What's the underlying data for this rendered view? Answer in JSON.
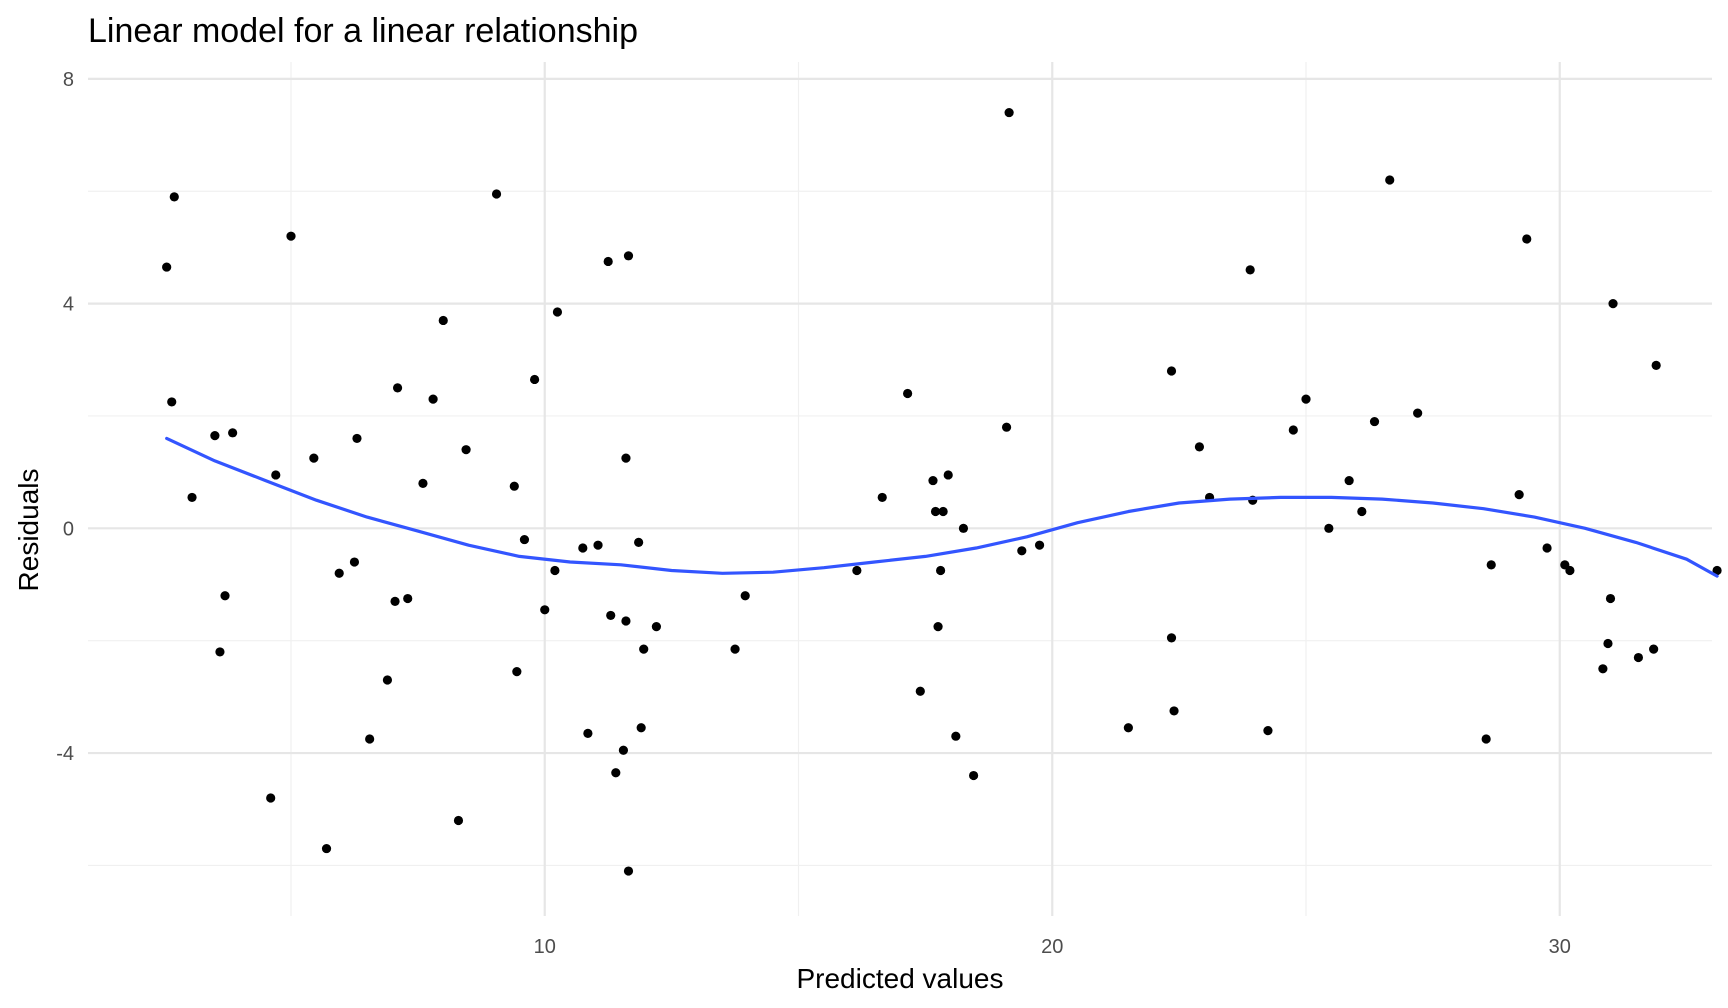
{
  "chart_data": {
    "type": "scatter",
    "title": "Linear model for a linear relationship",
    "xlabel": "Predicted values",
    "ylabel": "Residuals",
    "xlim": [
      1.0,
      33.0
    ],
    "ylim": [
      -6.9,
      8.3
    ],
    "x_ticks": [
      10,
      20,
      30
    ],
    "x_minor_ticks": [
      5,
      15,
      25
    ],
    "y_ticks": [
      -4,
      0,
      4,
      8
    ],
    "y_minor_ticks": [
      -6,
      -2,
      2,
      6
    ],
    "x_tick_labels": [
      "10",
      "20",
      "30"
    ],
    "y_tick_labels": [
      "-4",
      "0",
      "4",
      "8"
    ],
    "grid": true,
    "colors": {
      "points": "#000000",
      "smooth": "#3355ff",
      "grid": "#e6e6e6"
    },
    "points": [
      [
        2.55,
        4.65
      ],
      [
        2.65,
        2.25
      ],
      [
        2.7,
        5.9
      ],
      [
        3.05,
        0.55
      ],
      [
        3.5,
        1.65
      ],
      [
        3.6,
        -2.2
      ],
      [
        3.7,
        -1.2
      ],
      [
        3.85,
        1.7
      ],
      [
        4.6,
        -4.8
      ],
      [
        4.7,
        0.95
      ],
      [
        5.0,
        5.2
      ],
      [
        5.45,
        1.25
      ],
      [
        5.7,
        -5.7
      ],
      [
        5.95,
        -0.8
      ],
      [
        6.25,
        -0.6
      ],
      [
        6.3,
        1.6
      ],
      [
        6.55,
        -3.75
      ],
      [
        6.9,
        -2.7
      ],
      [
        7.05,
        -1.3
      ],
      [
        7.1,
        2.5
      ],
      [
        7.3,
        -1.25
      ],
      [
        7.6,
        0.8
      ],
      [
        7.8,
        2.3
      ],
      [
        8.0,
        3.7
      ],
      [
        8.3,
        -5.2
      ],
      [
        8.45,
        1.4
      ],
      [
        9.05,
        5.95
      ],
      [
        9.4,
        0.75
      ],
      [
        9.45,
        -2.55
      ],
      [
        9.6,
        -0.2
      ],
      [
        9.8,
        2.65
      ],
      [
        10.0,
        -1.45
      ],
      [
        10.2,
        -0.75
      ],
      [
        10.25,
        3.85
      ],
      [
        10.75,
        -0.35
      ],
      [
        10.85,
        -3.65
      ],
      [
        11.05,
        -0.3
      ],
      [
        11.25,
        4.75
      ],
      [
        11.3,
        -1.55
      ],
      [
        11.4,
        -4.35
      ],
      [
        11.55,
        -3.95
      ],
      [
        11.6,
        -1.65
      ],
      [
        11.6,
        1.25
      ],
      [
        11.65,
        -6.1
      ],
      [
        11.65,
        4.85
      ],
      [
        11.85,
        -0.25
      ],
      [
        11.9,
        -3.55
      ],
      [
        11.95,
        -2.15
      ],
      [
        12.2,
        -1.75
      ],
      [
        13.75,
        -2.15
      ],
      [
        13.95,
        -1.2
      ],
      [
        16.15,
        -0.75
      ],
      [
        16.65,
        0.55
      ],
      [
        17.15,
        2.4
      ],
      [
        17.4,
        -2.9
      ],
      [
        17.65,
        0.85
      ],
      [
        17.7,
        0.3
      ],
      [
        17.75,
        -1.75
      ],
      [
        17.8,
        -0.75
      ],
      [
        17.85,
        0.3
      ],
      [
        17.95,
        0.95
      ],
      [
        18.1,
        -3.7
      ],
      [
        18.25,
        0.0
      ],
      [
        18.45,
        -4.4
      ],
      [
        19.1,
        1.8
      ],
      [
        19.15,
        7.4
      ],
      [
        19.4,
        -0.4
      ],
      [
        19.75,
        -0.3
      ],
      [
        21.5,
        -3.55
      ],
      [
        22.35,
        2.8
      ],
      [
        22.35,
        -1.95
      ],
      [
        22.4,
        -3.25
      ],
      [
        22.9,
        1.45
      ],
      [
        23.1,
        0.55
      ],
      [
        23.9,
        4.6
      ],
      [
        23.95,
        0.5
      ],
      [
        24.25,
        -3.6
      ],
      [
        24.75,
        1.75
      ],
      [
        25.0,
        2.3
      ],
      [
        25.45,
        0.0
      ],
      [
        25.85,
        0.85
      ],
      [
        26.1,
        0.3
      ],
      [
        26.35,
        1.9
      ],
      [
        26.65,
        6.2
      ],
      [
        27.2,
        2.05
      ],
      [
        28.55,
        -3.75
      ],
      [
        28.65,
        -0.65
      ],
      [
        29.2,
        0.6
      ],
      [
        29.35,
        5.15
      ],
      [
        29.75,
        -0.35
      ],
      [
        30.1,
        -0.65
      ],
      [
        30.2,
        -0.75
      ],
      [
        30.85,
        -2.5
      ],
      [
        30.95,
        -2.05
      ],
      [
        31.0,
        -1.25
      ],
      [
        31.05,
        4.0
      ],
      [
        31.55,
        -2.3
      ],
      [
        31.85,
        -2.15
      ],
      [
        31.9,
        2.9
      ],
      [
        33.1,
        -0.75
      ]
    ],
    "smooth": [
      [
        2.55,
        1.6
      ],
      [
        3.5,
        1.2
      ],
      [
        4.5,
        0.85
      ],
      [
        5.5,
        0.5
      ],
      [
        6.5,
        0.2
      ],
      [
        7.5,
        -0.05
      ],
      [
        8.5,
        -0.3
      ],
      [
        9.5,
        -0.5
      ],
      [
        10.5,
        -0.6
      ],
      [
        11.5,
        -0.65
      ],
      [
        12.5,
        -0.75
      ],
      [
        13.5,
        -0.8
      ],
      [
        14.5,
        -0.78
      ],
      [
        15.5,
        -0.7
      ],
      [
        16.5,
        -0.6
      ],
      [
        17.5,
        -0.5
      ],
      [
        18.5,
        -0.35
      ],
      [
        19.5,
        -0.15
      ],
      [
        20.5,
        0.1
      ],
      [
        21.5,
        0.3
      ],
      [
        22.5,
        0.45
      ],
      [
        23.5,
        0.52
      ],
      [
        24.5,
        0.55
      ],
      [
        25.5,
        0.55
      ],
      [
        26.5,
        0.52
      ],
      [
        27.5,
        0.45
      ],
      [
        28.5,
        0.35
      ],
      [
        29.5,
        0.2
      ],
      [
        30.5,
        0.0
      ],
      [
        31.5,
        -0.25
      ],
      [
        32.5,
        -0.55
      ],
      [
        33.1,
        -0.85
      ]
    ]
  }
}
